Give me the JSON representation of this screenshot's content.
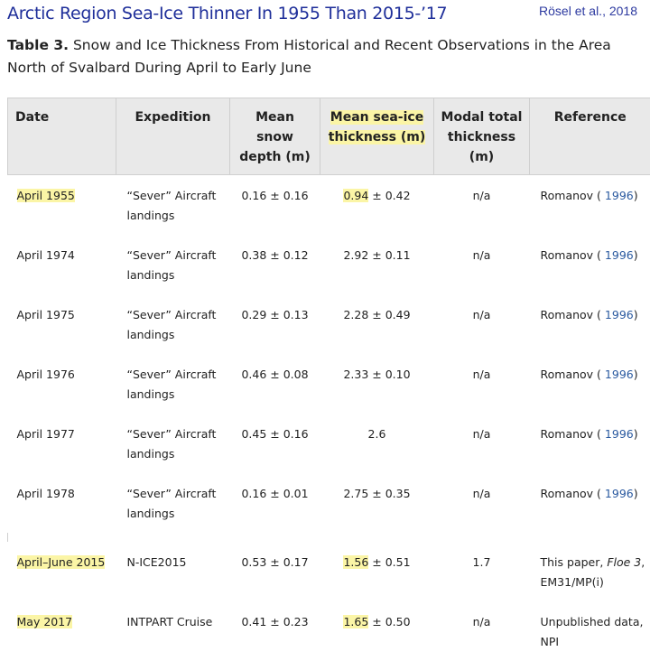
{
  "header": {
    "headline": "Arctic Region Sea-Ice Thinner In 1955 Than 2015-’17",
    "credit": "Rösel et al., 2018"
  },
  "caption": {
    "label": "Table 3.",
    "text": " Snow and Ice Thickness From Historical and Recent Observations in the Area North of Svalbard During April to Early June"
  },
  "table": {
    "columns": [
      "Date",
      "Expedition",
      "Mean snow depth (m)",
      "Mean sea-ice thickness (m)",
      "Modal total thickness (m)",
      "Reference"
    ],
    "rows": [
      {
        "date": "April 1955",
        "expedition": "“Sever” Aircraft landings",
        "snow": "0.16 ± 0.16",
        "ice_value": "0.94",
        "ice_err": " ± 0.42",
        "modal": "n/a",
        "ref_name": "Romanov (",
        "ref_year": " 1996",
        "ref_end": ")",
        "highlight": true
      },
      {
        "date": "April 1974",
        "expedition": "“Sever” Aircraft landings",
        "snow": "0.38 ± 0.12",
        "ice_value": "2.92",
        "ice_err": " ± 0.11",
        "modal": "n/a",
        "ref_name": "Romanov (",
        "ref_year": " 1996",
        "ref_end": ")",
        "highlight": false
      },
      {
        "date": "April 1975",
        "expedition": "“Sever” Aircraft landings",
        "snow": "0.29 ± 0.13",
        "ice_value": "2.28",
        "ice_err": " ± 0.49",
        "modal": "n/a",
        "ref_name": "Romanov (",
        "ref_year": " 1996",
        "ref_end": ")",
        "highlight": false
      },
      {
        "date": "April 1976",
        "expedition": "“Sever” Aircraft landings",
        "snow": "0.46 ± 0.08",
        "ice_value": "2.33",
        "ice_err": " ± 0.10",
        "modal": "n/a",
        "ref_name": "Romanov (",
        "ref_year": " 1996",
        "ref_end": ")",
        "highlight": false
      },
      {
        "date": "April 1977",
        "expedition": "“Sever” Aircraft landings",
        "snow": "0.45 ± 0.16",
        "ice_value": "2.6",
        "ice_err": "",
        "modal": "n/a",
        "ref_name": "Romanov (",
        "ref_year": " 1996",
        "ref_end": ")",
        "highlight": false
      },
      {
        "date": "April 1978",
        "expedition": "“Sever” Aircraft landings",
        "snow": "0.16 ± 0.01",
        "ice_value": "2.75",
        "ice_err": " ± 0.35",
        "modal": "n/a",
        "ref_name": "Romanov (",
        "ref_year": " 1996",
        "ref_end": ")",
        "highlight": false
      },
      {
        "date": "April–June 2015",
        "expedition": "N-ICE2015",
        "snow": "0.53 ± 0.17",
        "ice_value": "1.56",
        "ice_err": " ± 0.51",
        "modal": "1.7",
        "ref_name": "This paper, ",
        "ref_italic": "Floe 3",
        "ref_line2": "EM31/MP(i)",
        "highlight": true
      },
      {
        "date": "May 2017",
        "expedition": "INTPART Cruise",
        "snow": "0.41 ± 0.23",
        "ice_value": "1.65",
        "ice_err": " ± 0.50",
        "modal": "n/a",
        "ref_name": "Unpublished data,",
        "ref_line2": "NPI",
        "highlight": true
      }
    ]
  },
  "colors": {
    "headline": "#1f2f9a",
    "highlight": "#fbf5a6",
    "link": "#2b5aa0",
    "header_bg": "#e9e9e9"
  }
}
